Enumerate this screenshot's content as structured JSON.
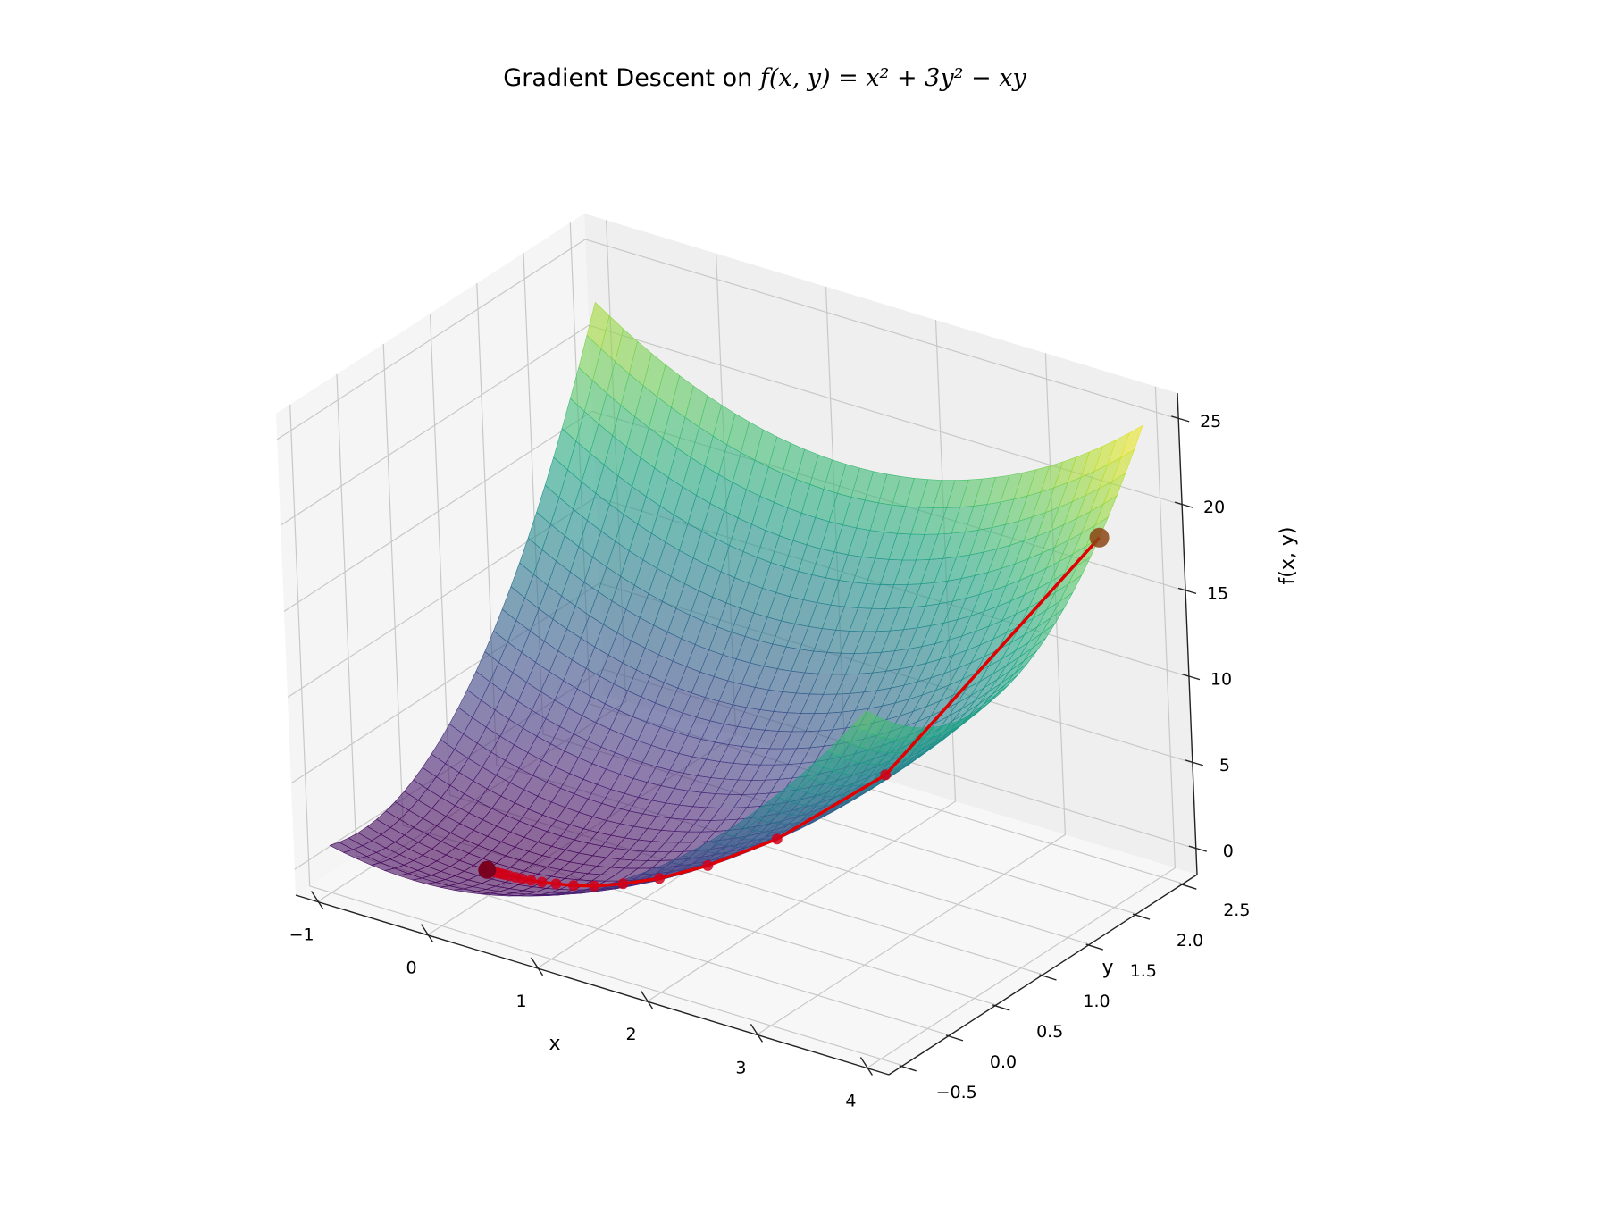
{
  "chart_data": {
    "type": "surface",
    "title": {
      "prefix": "Gradient Descent on ",
      "formula": "f(x, y) = x² + 3y² − xy"
    },
    "xlabel": "x",
    "ylabel": "y",
    "zlabel": "f(x, y)",
    "xlim": [
      -1.2,
      4.2
    ],
    "ylim": [
      -0.65,
      2.65
    ],
    "zlim": [
      -1.5,
      26.5
    ],
    "x_ticks": [
      {
        "value": -1,
        "label": "−1"
      },
      {
        "value": 0,
        "label": "0"
      },
      {
        "value": 1,
        "label": "1"
      },
      {
        "value": 2,
        "label": "2"
      },
      {
        "value": 3,
        "label": "3"
      },
      {
        "value": 4,
        "label": "4"
      }
    ],
    "y_ticks": [
      {
        "value": -0.5,
        "label": "−0.5"
      },
      {
        "value": 0,
        "label": "0.0"
      },
      {
        "value": 0.5,
        "label": "0.5"
      },
      {
        "value": 1,
        "label": "1.0"
      },
      {
        "value": 1.5,
        "label": "1.5"
      },
      {
        "value": 2,
        "label": "2.0"
      },
      {
        "value": 2.5,
        "label": "2.5"
      }
    ],
    "z_ticks": [
      {
        "value": 0,
        "label": "0"
      },
      {
        "value": 5,
        "label": "5"
      },
      {
        "value": 10,
        "label": "10"
      },
      {
        "value": 15,
        "label": "15"
      },
      {
        "value": 20,
        "label": "20"
      },
      {
        "value": 25,
        "label": "25"
      }
    ],
    "surface": {
      "x_range": [
        -1,
        4
      ],
      "y_range": [
        -0.5,
        2.5
      ],
      "colormap": "viridis",
      "alpha": 0.6
    },
    "path": {
      "color": "#e00000",
      "points": [
        {
          "x": 4.0,
          "y": 2.0,
          "z": 20.0
        },
        {
          "x": 3.0,
          "y": 0.8,
          "z": 8.5
        },
        {
          "x": 2.4,
          "y": 0.32,
          "z": 5.3
        },
        {
          "x": 1.92,
          "y": 0.13,
          "z": 3.5
        },
        {
          "x": 1.54,
          "y": 0.05,
          "z": 2.3
        },
        {
          "x": 1.23,
          "y": 0.02,
          "z": 1.5
        },
        {
          "x": 0.98,
          "y": 0.0,
          "z": 0.96
        },
        {
          "x": 0.79,
          "y": 0.0,
          "z": 0.62
        },
        {
          "x": 0.63,
          "y": 0.0,
          "z": 0.4
        },
        {
          "x": 0.5,
          "y": 0.0,
          "z": 0.25
        },
        {
          "x": 0.4,
          "y": 0.0,
          "z": 0.16
        },
        {
          "x": 0.32,
          "y": 0.0,
          "z": 0.1
        },
        {
          "x": 0.26,
          "y": 0.0,
          "z": 0.07
        },
        {
          "x": 0.2,
          "y": 0.0,
          "z": 0.04
        },
        {
          "x": 0.16,
          "y": 0.0,
          "z": 0.03
        },
        {
          "x": 0.13,
          "y": 0.0,
          "z": 0.02
        },
        {
          "x": 0.1,
          "y": 0.0,
          "z": 0.01
        },
        {
          "x": 0.08,
          "y": 0.0,
          "z": 0.01
        },
        {
          "x": 0.0,
          "y": 0.0,
          "z": 0.0
        }
      ]
    },
    "start_marker_color": "#8b4513",
    "end_marker_color": "#7a0020",
    "grid": true
  }
}
